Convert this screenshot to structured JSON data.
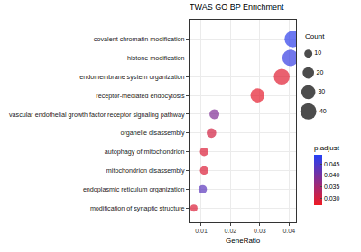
{
  "chart_data": {
    "type": "scatter",
    "title": "TWAS GO BP Enrichment",
    "x_label": "GeneRatio",
    "categories": [
      "covalent chromatin modification",
      "histone modification",
      "endomembrane system organization",
      "receptor-mediated endocytosis",
      "vascular endothelial growth factor receptor signaling pathway",
      "organelle disassembly",
      "autophagy of mitochondrion",
      "mitochondrion disassembly",
      "endoplasmic reticulum organization",
      "modification of synaptic structure"
    ],
    "values": [
      0.0413,
      0.0405,
      0.0375,
      0.0292,
      0.0145,
      0.0135,
      0.011,
      0.011,
      0.0105,
      0.0075
    ],
    "count": [
      42,
      41,
      38,
      30,
      15,
      14,
      11,
      11,
      11,
      8
    ],
    "p_adjust": [
      0.048,
      0.047,
      0.0285,
      0.028,
      0.039,
      0.03,
      0.029,
      0.029,
      0.043,
      0.029
    ],
    "xlim": [
      0.006,
      0.0425
    ],
    "xticks": [
      0.01,
      0.02,
      0.03,
      0.04
    ],
    "grid": true,
    "marker": "circle",
    "size_legend": {
      "title": "Count",
      "values": [
        10,
        20,
        30,
        40
      ]
    },
    "color_scale": {
      "title": "p.adjust",
      "colors": [
        "#ee1b24",
        "#2440f5"
      ],
      "range": [
        0.027,
        0.049
      ],
      "ticks": [
        {
          "value": 0.03,
          "label": "0.030"
        },
        {
          "value": 0.035,
          "label": "0.035"
        },
        {
          "value": 0.04,
          "label": "0.040"
        },
        {
          "value": 0.045,
          "label": "0.045"
        }
      ]
    }
  }
}
